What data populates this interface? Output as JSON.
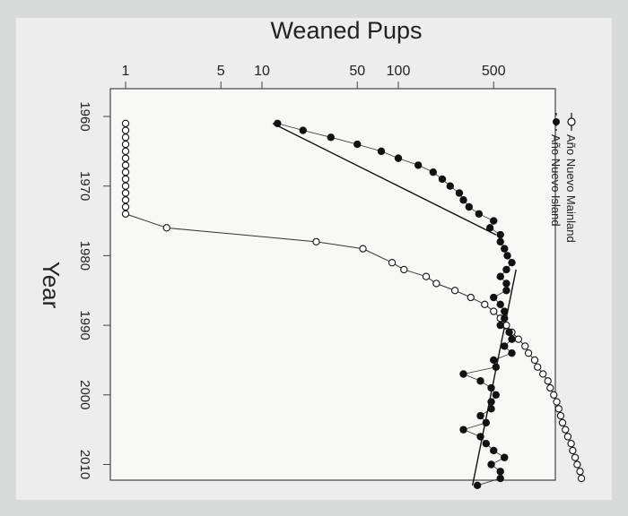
{
  "chart_data": {
    "type": "scatter",
    "title": "Weaned Pups",
    "xlabel": "",
    "ylabel": "Year",
    "x_scale": "log",
    "x_ticks": [
      "1",
      "5",
      "10",
      "50",
      "100",
      "500"
    ],
    "y_ticks": [
      "1960",
      "1970",
      "1980",
      "1990",
      "2000",
      "2010"
    ],
    "ylim": [
      1959,
      2014
    ],
    "xlim": [
      0.8,
      1100
    ],
    "legend_position": "top-right",
    "series": [
      {
        "name": "Año Nuevo Mainland",
        "marker": "open-circle",
        "points": [
          {
            "year": 1961,
            "pups": 1
          },
          {
            "year": 1962,
            "pups": 1
          },
          {
            "year": 1963,
            "pups": 1
          },
          {
            "year": 1964,
            "pups": 1
          },
          {
            "year": 1965,
            "pups": 1
          },
          {
            "year": 1966,
            "pups": 1
          },
          {
            "year": 1967,
            "pups": 1
          },
          {
            "year": 1968,
            "pups": 1
          },
          {
            "year": 1969,
            "pups": 1
          },
          {
            "year": 1970,
            "pups": 1
          },
          {
            "year": 1971,
            "pups": 1
          },
          {
            "year": 1972,
            "pups": 1
          },
          {
            "year": 1973,
            "pups": 1
          },
          {
            "year": 1974,
            "pups": 1
          },
          {
            "year": 1976,
            "pups": 2
          },
          {
            "year": 1978,
            "pups": 25
          },
          {
            "year": 1979,
            "pups": 55
          },
          {
            "year": 1981,
            "pups": 90
          },
          {
            "year": 1982,
            "pups": 110
          },
          {
            "year": 1983,
            "pups": 160
          },
          {
            "year": 1984,
            "pups": 190
          },
          {
            "year": 1985,
            "pups": 260
          },
          {
            "year": 1986,
            "pups": 340
          },
          {
            "year": 1987,
            "pups": 430
          },
          {
            "year": 1988,
            "pups": 500
          },
          {
            "year": 1989,
            "pups": 560
          },
          {
            "year": 1990,
            "pups": 620
          },
          {
            "year": 1991,
            "pups": 680
          },
          {
            "year": 1992,
            "pups": 760
          },
          {
            "year": 1993,
            "pups": 850
          },
          {
            "year": 1994,
            "pups": 900
          },
          {
            "year": 1995,
            "pups": 1000
          },
          {
            "year": 1996,
            "pups": 1050
          },
          {
            "year": 1997,
            "pups": 1150
          },
          {
            "year": 1998,
            "pups": 1250
          },
          {
            "year": 1999,
            "pups": 1300
          },
          {
            "year": 2000,
            "pups": 1380
          },
          {
            "year": 2001,
            "pups": 1450
          },
          {
            "year": 2002,
            "pups": 1500
          },
          {
            "year": 2003,
            "pups": 1550
          },
          {
            "year": 2004,
            "pups": 1600
          },
          {
            "year": 2005,
            "pups": 1680
          },
          {
            "year": 2006,
            "pups": 1750
          },
          {
            "year": 2007,
            "pups": 1850
          },
          {
            "year": 2008,
            "pups": 1900
          },
          {
            "year": 2009,
            "pups": 1980
          },
          {
            "year": 2010,
            "pups": 2050
          },
          {
            "year": 2011,
            "pups": 2150
          },
          {
            "year": 2012,
            "pups": 2200
          }
        ]
      },
      {
        "name": "Año Nuevo Island",
        "marker": "filled-circle",
        "points": [
          {
            "year": 1961,
            "pups": 13
          },
          {
            "year": 1962,
            "pups": 20
          },
          {
            "year": 1963,
            "pups": 32
          },
          {
            "year": 1964,
            "pups": 50
          },
          {
            "year": 1965,
            "pups": 75
          },
          {
            "year": 1966,
            "pups": 100
          },
          {
            "year": 1967,
            "pups": 140
          },
          {
            "year": 1968,
            "pups": 180
          },
          {
            "year": 1969,
            "pups": 210
          },
          {
            "year": 1970,
            "pups": 240
          },
          {
            "year": 1971,
            "pups": 280
          },
          {
            "year": 1972,
            "pups": 300
          },
          {
            "year": 1973,
            "pups": 330
          },
          {
            "year": 1974,
            "pups": 390
          },
          {
            "year": 1975,
            "pups": 500
          },
          {
            "year": 1976,
            "pups": 470
          },
          {
            "year": 1977,
            "pups": 560
          },
          {
            "year": 1978,
            "pups": 560
          },
          {
            "year": 1979,
            "pups": 600
          },
          {
            "year": 1980,
            "pups": 630
          },
          {
            "year": 1981,
            "pups": 680
          },
          {
            "year": 1982,
            "pups": 620
          },
          {
            "year": 1983,
            "pups": 560
          },
          {
            "year": 1984,
            "pups": 620
          },
          {
            "year": 1985,
            "pups": 620
          },
          {
            "year": 1986,
            "pups": 500
          },
          {
            "year": 1987,
            "pups": 560
          },
          {
            "year": 1988,
            "pups": 600
          },
          {
            "year": 1989,
            "pups": 600
          },
          {
            "year": 1990,
            "pups": 560
          },
          {
            "year": 1991,
            "pups": 650
          },
          {
            "year": 1992,
            "pups": 680
          },
          {
            "year": 1993,
            "pups": 600
          },
          {
            "year": 1994,
            "pups": 680
          },
          {
            "year": 1995,
            "pups": 500
          },
          {
            "year": 1996,
            "pups": 520
          },
          {
            "year": 1997,
            "pups": 300
          },
          {
            "year": 1998,
            "pups": 400
          },
          {
            "year": 1999,
            "pups": 480
          },
          {
            "year": 2000,
            "pups": 520
          },
          {
            "year": 2001,
            "pups": 480
          },
          {
            "year": 2002,
            "pups": 480
          },
          {
            "year": 2003,
            "pups": 400
          },
          {
            "year": 2004,
            "pups": 440
          },
          {
            "year": 2005,
            "pups": 300
          },
          {
            "year": 2006,
            "pups": 400
          },
          {
            "year": 2007,
            "pups": 440
          },
          {
            "year": 2008,
            "pups": 500
          },
          {
            "year": 2009,
            "pups": 600
          },
          {
            "year": 2010,
            "pups": 480
          },
          {
            "year": 2011,
            "pups": 560
          },
          {
            "year": 2012,
            "pups": 560
          },
          {
            "year": 2013,
            "pups": 380
          }
        ]
      }
    ],
    "trend_lines": [
      {
        "series": "Año Nuevo Island",
        "segments": [
          {
            "from": {
              "year": 1961,
              "pups": 12
            },
            "to": {
              "year": 1977,
              "pups": 520
            }
          },
          {
            "from": {
              "year": 1982,
              "pups": 730
            },
            "to": {
              "year": 2013,
              "pups": 350
            }
          }
        ]
      }
    ]
  }
}
